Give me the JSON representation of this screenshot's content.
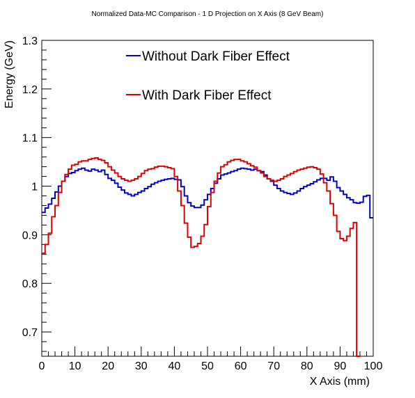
{
  "chart_data": {
    "type": "line",
    "title": "Normalized Data-MC Comparison - 1 D Projection on X Axis (8 GeV Beam)",
    "xlabel": "X Axis (mm)",
    "ylabel": "Energy (GeV)",
    "xlim": [
      0,
      100
    ],
    "ylim": [
      0.65,
      1.3
    ],
    "x_ticks": [
      0,
      10,
      20,
      30,
      40,
      50,
      60,
      70,
      80,
      90,
      100
    ],
    "y_ticks": [
      0.7,
      0.8,
      0.9,
      1.0,
      1.1,
      1.2,
      1.3
    ],
    "x_tick_labels": [
      "0",
      "10",
      "20",
      "30",
      "40",
      "50",
      "60",
      "70",
      "80",
      "90",
      "100"
    ],
    "y_tick_labels": [
      "0.7",
      "0.8",
      "0.9",
      "1",
      "1.1",
      "1.2",
      "1.3"
    ],
    "bin_edges_start": 0,
    "bin_width": 1,
    "grid": false,
    "legend_position": "top-center",
    "series": [
      {
        "name": "Without Dark Fiber Effect",
        "color": "#0000cc",
        "values": [
          0.946,
          0.955,
          0.963,
          0.975,
          0.988,
          1.0,
          1.01,
          1.02,
          1.026,
          1.028,
          1.032,
          1.035,
          1.037,
          1.033,
          1.031,
          1.035,
          1.033,
          1.03,
          1.033,
          1.024,
          1.016,
          1.012,
          1.006,
          0.998,
          0.992,
          0.986,
          0.983,
          0.98,
          0.983,
          0.987,
          0.99,
          0.995,
          0.999,
          1.004,
          1.007,
          1.01,
          1.012,
          1.014,
          1.015,
          1.016,
          1.014,
          1.013,
          0.999,
          0.98,
          0.966,
          0.959,
          0.956,
          0.956,
          0.961,
          0.972,
          0.983,
          0.995,
          1.006,
          1.015,
          1.023,
          1.025,
          1.027,
          1.03,
          1.032,
          1.035,
          1.037,
          1.036,
          1.035,
          1.033,
          1.035,
          1.032,
          1.03,
          1.023,
          1.015,
          1.01,
          1.002,
          0.995,
          0.99,
          0.987,
          0.985,
          0.983,
          0.986,
          0.99,
          0.995,
          0.999,
          1.002,
          1.005,
          1.009,
          1.013,
          1.016,
          1.016,
          1.012,
          1.019,
          1.01,
          0.997,
          0.99,
          0.983,
          0.976,
          0.972,
          0.966,
          0.965,
          0.967,
          0.979,
          0.981,
          0.935
        ]
      },
      {
        "name": "With Dark Fiber Effect",
        "color": "#dd0000",
        "values": [
          0.862,
          0.88,
          0.903,
          0.937,
          0.96,
          0.987,
          1.01,
          1.024,
          1.035,
          1.043,
          1.045,
          1.05,
          1.052,
          1.052,
          1.055,
          1.057,
          1.058,
          1.055,
          1.053,
          1.048,
          1.04,
          1.033,
          1.027,
          1.02,
          1.015,
          1.012,
          1.01,
          1.012,
          1.015,
          1.02,
          1.026,
          1.032,
          1.035,
          1.036,
          1.039,
          1.041,
          1.041,
          1.04,
          1.038,
          1.036,
          1.02,
          0.99,
          0.96,
          0.924,
          0.895,
          0.874,
          0.876,
          0.882,
          0.897,
          0.921,
          0.958,
          0.987,
          1.01,
          1.027,
          1.04,
          1.044,
          1.05,
          1.053,
          1.055,
          1.055,
          1.052,
          1.05,
          1.046,
          1.042,
          1.039,
          1.032,
          1.027,
          1.02,
          1.015,
          1.012,
          1.01,
          1.012,
          1.015,
          1.02,
          1.023,
          1.026,
          1.03,
          1.033,
          1.035,
          1.037,
          1.039,
          1.04,
          1.038,
          1.035,
          1.025,
          1.007,
          0.99,
          0.964,
          0.94,
          0.907,
          0.892,
          0.888,
          0.897,
          0.913,
          0.925,
          0.65
        ]
      }
    ]
  }
}
